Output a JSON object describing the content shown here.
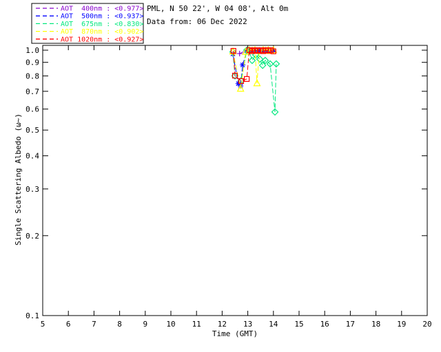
{
  "header": {
    "location_line": "PML, N 50 22', W 04 08', Alt 0m",
    "data_line": "Data from: 06 Dec 2022"
  },
  "chart_data": {
    "type": "line",
    "title": "",
    "xlabel": "Time (GMT)",
    "ylabel": "Single Scattering Albedo (ω~)",
    "xlim": [
      5,
      20
    ],
    "ylim": [
      0.1,
      1.0
    ],
    "y_scale": "log",
    "grid": false,
    "legend_position": "top-left",
    "x_tick_labels": [
      "5",
      "6",
      "7",
      "8",
      "9",
      "10",
      "11",
      "12",
      "13",
      "14",
      "15",
      "16",
      "17",
      "18",
      "19",
      "20"
    ],
    "y_tick_labels": [
      "1.0",
      "0.9",
      "0.8",
      "0.7",
      "0.6",
      "0.5",
      "0.4",
      "0.3",
      "0.2",
      "0.1"
    ],
    "series": [
      {
        "name": "AOT-400nm",
        "legend_label": "AOT  400nm",
        "legend_value": "<0.977>",
        "color": "#8800cc",
        "marker": "plus",
        "points": [
          [
            12.68,
            0.971
          ],
          [
            12.96,
            1.0
          ],
          [
            13.06,
            0.988
          ],
          [
            13.17,
            1.0
          ],
          [
            13.28,
            0.993
          ],
          [
            13.39,
            0.997
          ],
          [
            13.5,
            1.0
          ],
          [
            13.6,
            0.991
          ],
          [
            13.7,
            1.0
          ],
          [
            13.8,
            0.995
          ],
          [
            13.9,
            1.0
          ],
          [
            14.0,
            0.992
          ]
        ]
      },
      {
        "name": "AOT-500nm",
        "legend_label": "AOT  500nm",
        "legend_value": "<0.937>",
        "color": "#0000ff",
        "marker": "asterisk",
        "points": [
          [
            12.42,
            0.968
          ],
          [
            12.63,
            0.748
          ],
          [
            12.72,
            0.733
          ],
          [
            12.8,
            0.88
          ],
          [
            12.96,
            0.995
          ],
          [
            13.06,
            1.0
          ],
          [
            13.17,
            0.992
          ],
          [
            13.28,
            1.0
          ],
          [
            13.39,
            0.996
          ],
          [
            13.5,
            1.0
          ],
          [
            13.6,
            0.992
          ],
          [
            13.7,
            1.0
          ],
          [
            13.8,
            0.996
          ],
          [
            13.9,
            1.0
          ],
          [
            14.0,
            0.996
          ]
        ]
      },
      {
        "name": "AOT-675nm",
        "legend_label": "AOT  675nm",
        "legend_value": "<0.830>",
        "color": "#00e87d",
        "marker": "diamond",
        "points": [
          [
            12.42,
            0.985
          ],
          [
            12.5,
            0.8
          ],
          [
            12.74,
            0.768
          ],
          [
            12.96,
            1.0
          ],
          [
            13.06,
            0.99
          ],
          [
            13.17,
            0.915
          ],
          [
            13.31,
            0.96
          ],
          [
            13.47,
            0.925
          ],
          [
            13.58,
            0.877
          ],
          [
            13.68,
            0.915
          ],
          [
            13.87,
            0.888
          ],
          [
            14.06,
            0.585
          ],
          [
            14.11,
            0.888
          ]
        ]
      },
      {
        "name": "AOT-870nm",
        "legend_label": "AOT  870nm",
        "legend_value": "<0.902>",
        "color": "#ffff00",
        "marker": "triangle",
        "points": [
          [
            12.42,
            0.988
          ],
          [
            12.72,
            0.715
          ],
          [
            12.92,
            0.985
          ],
          [
            13.06,
            1.0
          ],
          [
            13.17,
            0.995
          ],
          [
            13.28,
            1.0
          ],
          [
            13.36,
            0.75
          ],
          [
            13.45,
            0.992
          ],
          [
            13.6,
            1.0
          ],
          [
            13.7,
            0.995
          ],
          [
            13.8,
            1.0
          ],
          [
            13.9,
            0.992
          ],
          [
            14.0,
            1.0
          ]
        ]
      },
      {
        "name": "AOT-1020nm",
        "legend_label": "AOT 1020nm",
        "legend_value": "<0.927>",
        "color": "#ff0000",
        "marker": "square",
        "points": [
          [
            12.44,
            0.994
          ],
          [
            12.5,
            0.802
          ],
          [
            12.74,
            0.765
          ],
          [
            12.96,
            0.779
          ],
          [
            13.06,
            1.0
          ],
          [
            13.17,
            0.992
          ],
          [
            13.28,
            1.0
          ],
          [
            13.39,
            0.995
          ],
          [
            13.5,
            1.0
          ],
          [
            13.6,
            0.992
          ],
          [
            13.7,
            1.0
          ],
          [
            13.8,
            0.996
          ],
          [
            13.9,
            1.0
          ],
          [
            14.0,
            0.99
          ]
        ]
      }
    ]
  }
}
